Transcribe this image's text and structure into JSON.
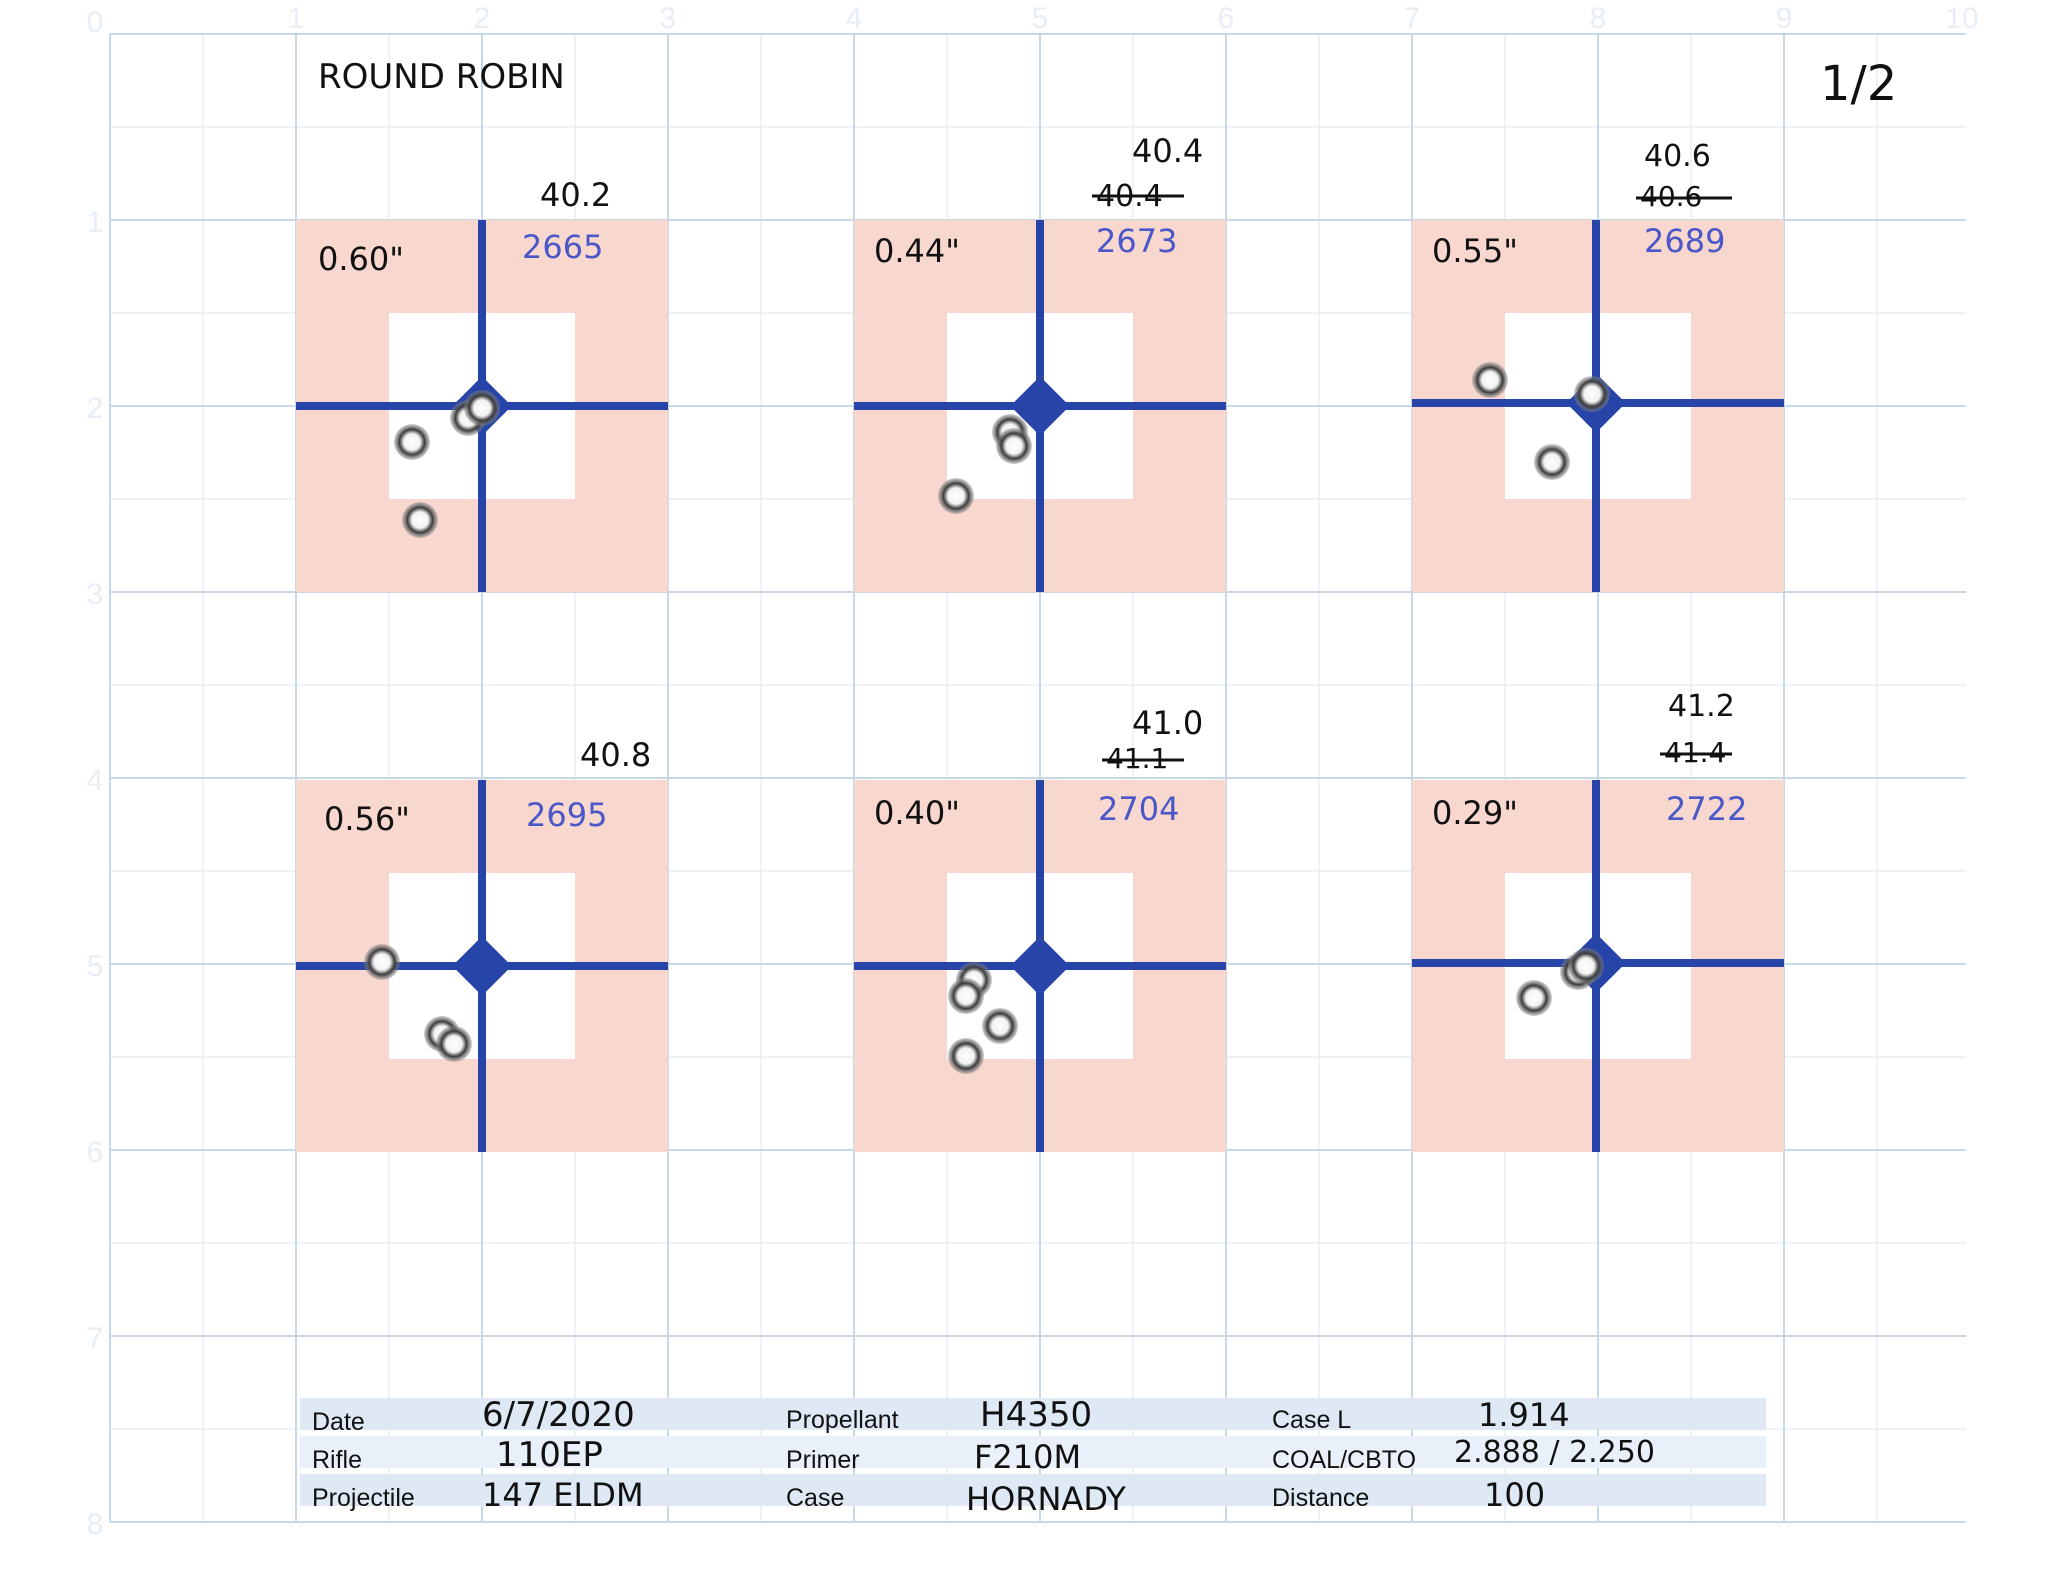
{
  "sheet": {
    "title": "ROUND ROBIN",
    "page_number": "1/2",
    "grid_x_labels": [
      "0",
      "1",
      "2",
      "3",
      "4",
      "5",
      "6",
      "7",
      "8",
      "9",
      "10"
    ],
    "grid_y_labels": [
      "1",
      "2",
      "3",
      "4",
      "5",
      "6",
      "7",
      "8"
    ]
  },
  "targets": [
    {
      "group_size": "0.60\"",
      "charge": "40.2",
      "charge_struck": "",
      "velocity": "2665",
      "shots": 4
    },
    {
      "group_size": "0.44\"",
      "charge": "40.4",
      "charge_struck": "40.4",
      "velocity": "2673",
      "shots": 3
    },
    {
      "group_size": "0.55\"",
      "charge": "40.6",
      "charge_struck": "40.6",
      "velocity": "2689",
      "shots": 3
    },
    {
      "group_size": "0.56\"",
      "charge": "40.8",
      "charge_struck": "",
      "velocity": "2695",
      "shots": 3
    },
    {
      "group_size": "0.40\"",
      "charge": "41.0",
      "charge_struck": "41.1",
      "velocity": "2704",
      "shots": 4
    },
    {
      "group_size": "0.29\"",
      "charge": "41.2",
      "charge_struck": "41.4",
      "velocity": "2722",
      "shots": 3
    }
  ],
  "info_table": {
    "rows": [
      [
        {
          "label": "Date",
          "value": "6/7/2020"
        },
        {
          "label": "Propellant",
          "value": "H4350"
        },
        {
          "label": "Case L",
          "value": "1.914"
        }
      ],
      [
        {
          "label": "Rifle",
          "value": "110EP"
        },
        {
          "label": "Primer",
          "value": "F210M"
        },
        {
          "label": "COAL/CBTO",
          "value": "2.888 / 2.250"
        }
      ],
      [
        {
          "label": "Projectile",
          "value": "147 ELDM"
        },
        {
          "label": "Case",
          "value": "HORNADY"
        },
        {
          "label": "Distance",
          "value": "100"
        }
      ]
    ]
  },
  "colors": {
    "target_pink": "#f8d7cf",
    "crosshair_blue": "#2744a8",
    "velocity_ink": "#4a57c8",
    "grid_line": "#c9d8e6",
    "table_shade": "#dfe9f6"
  }
}
